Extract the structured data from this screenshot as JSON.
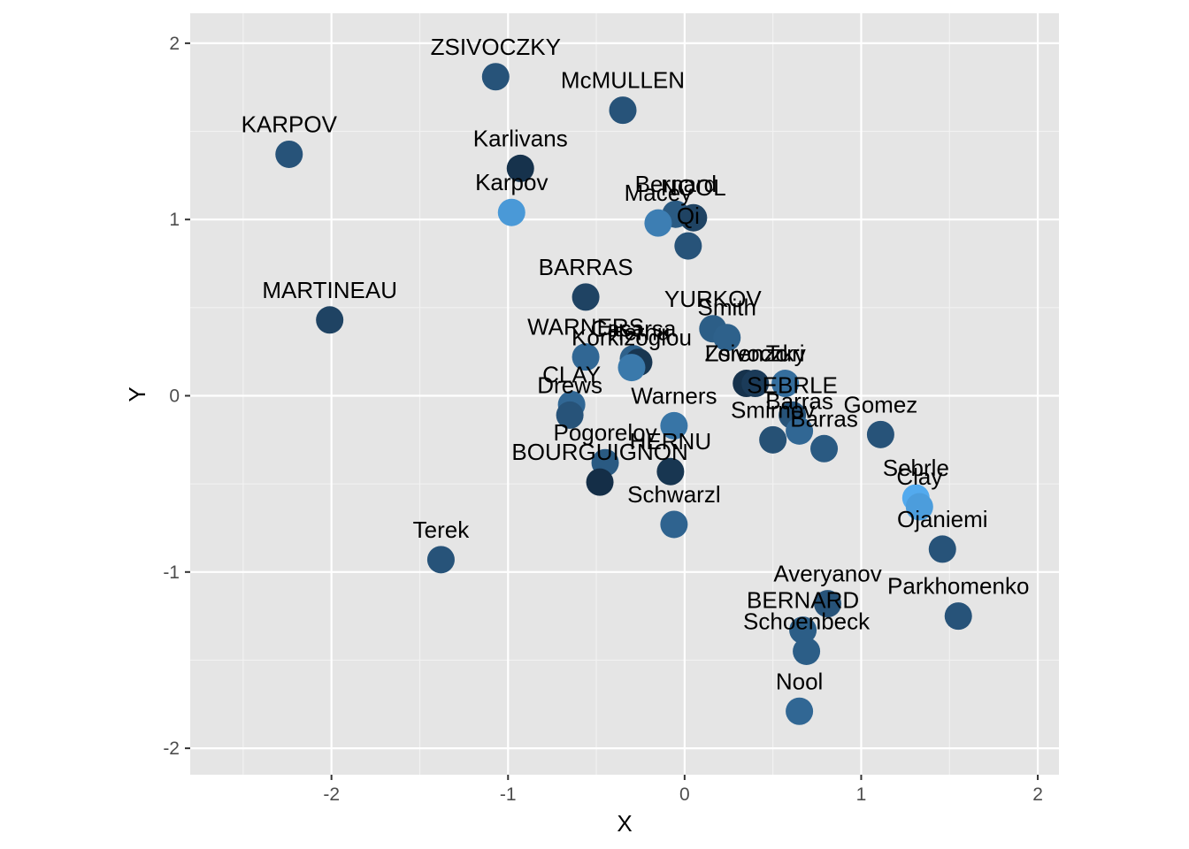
{
  "chart_data": {
    "type": "scatter",
    "xlabel": "X",
    "ylabel": "Y",
    "xlim": [
      -2.8,
      2.12
    ],
    "ylim": [
      -2.15,
      2.17
    ],
    "x_ticks": [
      -2,
      -1,
      0,
      1,
      2
    ],
    "y_ticks": [
      -2,
      -1,
      0,
      1,
      2
    ],
    "x_tick_labels": [
      "-2",
      "-1",
      "0",
      "1",
      "2"
    ],
    "y_tick_labels": [
      "-2",
      "-1",
      "0",
      "1",
      "2"
    ],
    "grid": true,
    "panel_background": "#e5e5e5",
    "grid_color": "#ffffff",
    "color_scale": {
      "low": "#132b43",
      "high": "#56b1f7"
    },
    "points": [
      {
        "label": "ZSIVOCZKY",
        "x": -1.07,
        "y": 1.81,
        "c": 0.3
      },
      {
        "label": "McMULLEN",
        "x": -0.35,
        "y": 1.62,
        "c": 0.3
      },
      {
        "label": "KARPOV",
        "x": -2.24,
        "y": 1.37,
        "c": 0.3
      },
      {
        "label": "Karlivans",
        "x": -0.93,
        "y": 1.29,
        "c": 0.05
      },
      {
        "label": "Karpov",
        "x": -0.98,
        "y": 1.04,
        "c": 0.82
      },
      {
        "label": "Bernard",
        "x": -0.05,
        "y": 1.03,
        "c": 0.35
      },
      {
        "label": "NOOL",
        "x": 0.05,
        "y": 1.01,
        "c": 0.18
      },
      {
        "label": "Macey",
        "x": -0.15,
        "y": 0.98,
        "c": 0.62
      },
      {
        "label": "Qi",
        "x": 0.02,
        "y": 0.85,
        "c": 0.3
      },
      {
        "label": "BARRAS",
        "x": -0.56,
        "y": 0.56,
        "c": 0.18
      },
      {
        "label": "MARTINEAU",
        "x": -2.01,
        "y": 0.43,
        "c": 0.18
      },
      {
        "label": "YURKOV",
        "x": 0.16,
        "y": 0.38,
        "c": 0.38
      },
      {
        "label": "Smith",
        "x": 0.24,
        "y": 0.33,
        "c": 0.4
      },
      {
        "label": "WARNERS",
        "x": -0.56,
        "y": 0.22,
        "c": 0.45
      },
      {
        "label": "Casarsa",
        "x": -0.29,
        "y": 0.21,
        "c": 0.4
      },
      {
        "label": "Hernu",
        "x": -0.26,
        "y": 0.19,
        "c": 0.08
      },
      {
        "label": "Korkizoglou",
        "x": -0.3,
        "y": 0.16,
        "c": 0.58
      },
      {
        "label": "Lorenzo",
        "x": 0.35,
        "y": 0.07,
        "c": 0.05
      },
      {
        "label": "Zsivoczky",
        "x": 0.4,
        "y": 0.07,
        "c": 0.12
      },
      {
        "label": "Turi",
        "x": 0.57,
        "y": 0.07,
        "c": 0.5
      },
      {
        "label": "CLAY",
        "x": -0.64,
        "y": -0.05,
        "c": 0.45
      },
      {
        "label": "Drews",
        "x": -0.65,
        "y": -0.11,
        "c": 0.3
      },
      {
        "label": "Warners",
        "x": -0.06,
        "y": -0.17,
        "c": 0.55
      },
      {
        "label": "SEBRLE",
        "x": 0.61,
        "y": -0.11,
        "c": 0.3
      },
      {
        "label": "Gomez",
        "x": 1.11,
        "y": -0.22,
        "c": 0.3
      },
      {
        "label": "Smirnov",
        "x": 0.5,
        "y": -0.25,
        "c": 0.28
      },
      {
        "label": "Barras",
        "x": 0.65,
        "y": -0.2,
        "c": 0.45
      },
      {
        "label": "Barras",
        "x": 0.79,
        "y": -0.3,
        "c": 0.35
      },
      {
        "label": "Pogorelov",
        "x": -0.45,
        "y": -0.38,
        "c": 0.35
      },
      {
        "label": "HERNU",
        "x": -0.08,
        "y": -0.43,
        "c": 0.08
      },
      {
        "label": "BOURGUIGNON",
        "x": -0.48,
        "y": -0.49,
        "c": 0.02
      },
      {
        "label": "Sebrle",
        "x": 1.31,
        "y": -0.58,
        "c": 0.95
      },
      {
        "label": "Clay",
        "x": 1.33,
        "y": -0.63,
        "c": 0.85
      },
      {
        "label": "Schwarzl",
        "x": -0.06,
        "y": -0.73,
        "c": 0.42
      },
      {
        "label": "Ojaniemi",
        "x": 1.46,
        "y": -0.87,
        "c": 0.3
      },
      {
        "label": "Terek",
        "x": -1.38,
        "y": -0.93,
        "c": 0.3
      },
      {
        "label": "Averyanov",
        "x": 0.81,
        "y": -1.18,
        "c": 0.3
      },
      {
        "label": "Parkhomenko",
        "x": 1.55,
        "y": -1.25,
        "c": 0.3
      },
      {
        "label": "BERNARD",
        "x": 0.67,
        "y": -1.33,
        "c": 0.38
      },
      {
        "label": "Schoenbeck",
        "x": 0.69,
        "y": -1.45,
        "c": 0.38
      },
      {
        "label": "Nool",
        "x": 0.65,
        "y": -1.79,
        "c": 0.45
      }
    ]
  }
}
